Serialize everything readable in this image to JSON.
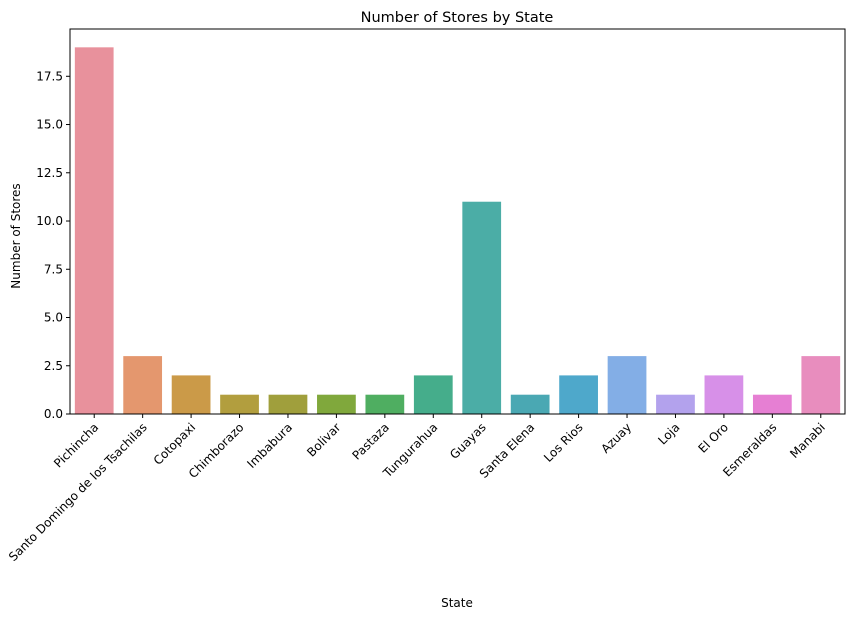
{
  "chart_data": {
    "type": "bar",
    "title": "Number of Stores by State",
    "xlabel": "State",
    "ylabel": "Number of Stores",
    "categories": [
      "Pichincha",
      "Santo Domingo de los Tsachilas",
      "Cotopaxi",
      "Chimborazo",
      "Imbabura",
      "Bolivar",
      "Pastaza",
      "Tungurahua",
      "Guayas",
      "Santa Elena",
      "Los Rios",
      "Azuay",
      "Loja",
      "El Oro",
      "Esmeraldas",
      "Manabi"
    ],
    "values": [
      19,
      3,
      2,
      1,
      1,
      1,
      1,
      2,
      11,
      1,
      2,
      3,
      1,
      2,
      1,
      3
    ],
    "colors": [
      "#e8919c",
      "#e4976e",
      "#cb9a48",
      "#b29e3e",
      "#a09f3c",
      "#80a83c",
      "#4fae61",
      "#45ad8b",
      "#4bada6",
      "#4aa8b3",
      "#4ea8cb",
      "#83aee6",
      "#b3a2ed",
      "#d790e8",
      "#e67fd3",
      "#e88dbe"
    ],
    "ylim": [
      0,
      19.95
    ],
    "yticks": [
      "0.0",
      "2.5",
      "5.0",
      "7.5",
      "10.0",
      "12.5",
      "15.0",
      "17.5"
    ],
    "grid": false,
    "legend": false
  }
}
